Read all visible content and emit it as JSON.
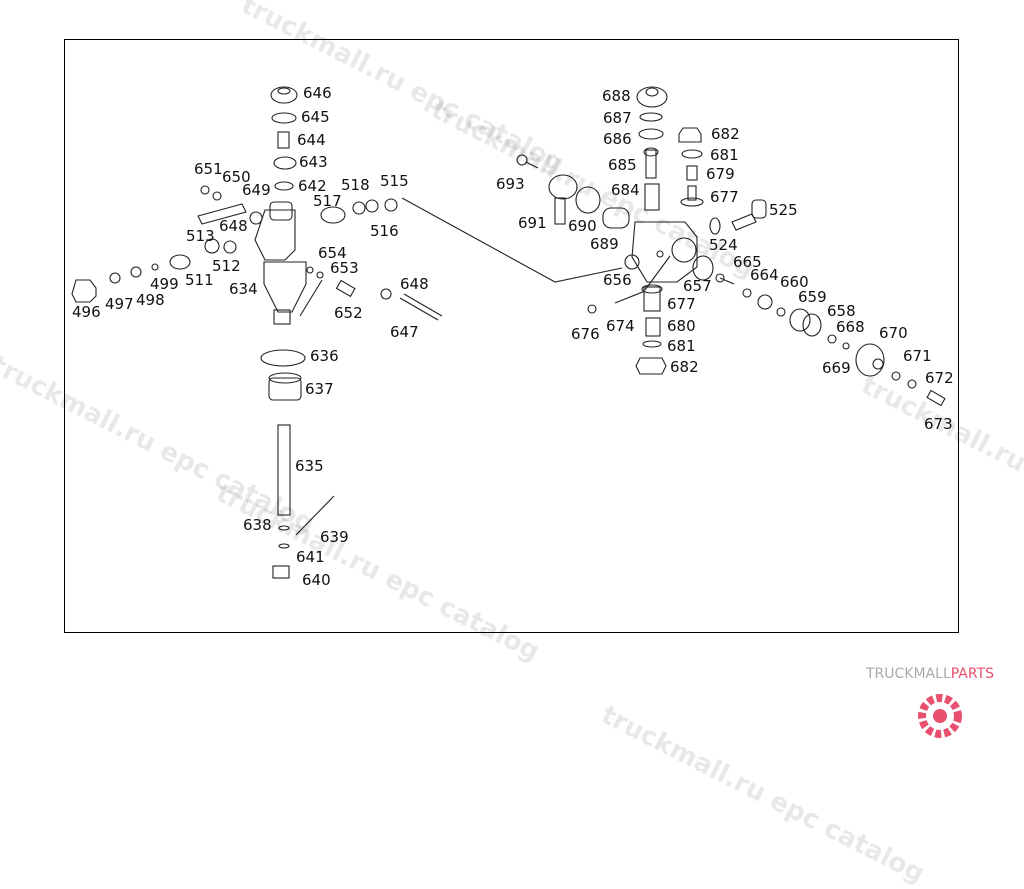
{
  "diagram": {
    "left_assembly_labels": [
      "646",
      "645",
      "644",
      "643",
      "642",
      "651",
      "650",
      "649",
      "518",
      "515",
      "517",
      "516",
      "648",
      "513",
      "512",
      "654",
      "653",
      "499",
      "511",
      "634",
      "496",
      "497",
      "498",
      "652",
      "648",
      "647",
      "636",
      "637",
      "635",
      "638",
      "639",
      "641",
      "640"
    ],
    "right_assembly_labels": [
      "688",
      "687",
      "686",
      "682",
      "681",
      "685",
      "679",
      "693",
      "684",
      "677",
      "525",
      "691",
      "690",
      "689",
      "524",
      "665",
      "656",
      "664",
      "660",
      "657",
      "659",
      "677",
      "658",
      "676",
      "674",
      "680",
      "668",
      "670",
      "681",
      "669",
      "671",
      "682",
      "672",
      "673"
    ]
  },
  "watermark": {
    "text": "truckmall.ru epc catalog"
  },
  "logo": {
    "text_main": "TRUCKMALL",
    "text_accent": "PARTS",
    "accent_color": "#e8506e"
  },
  "colors": {
    "line": "#111111",
    "border": "#000000"
  }
}
